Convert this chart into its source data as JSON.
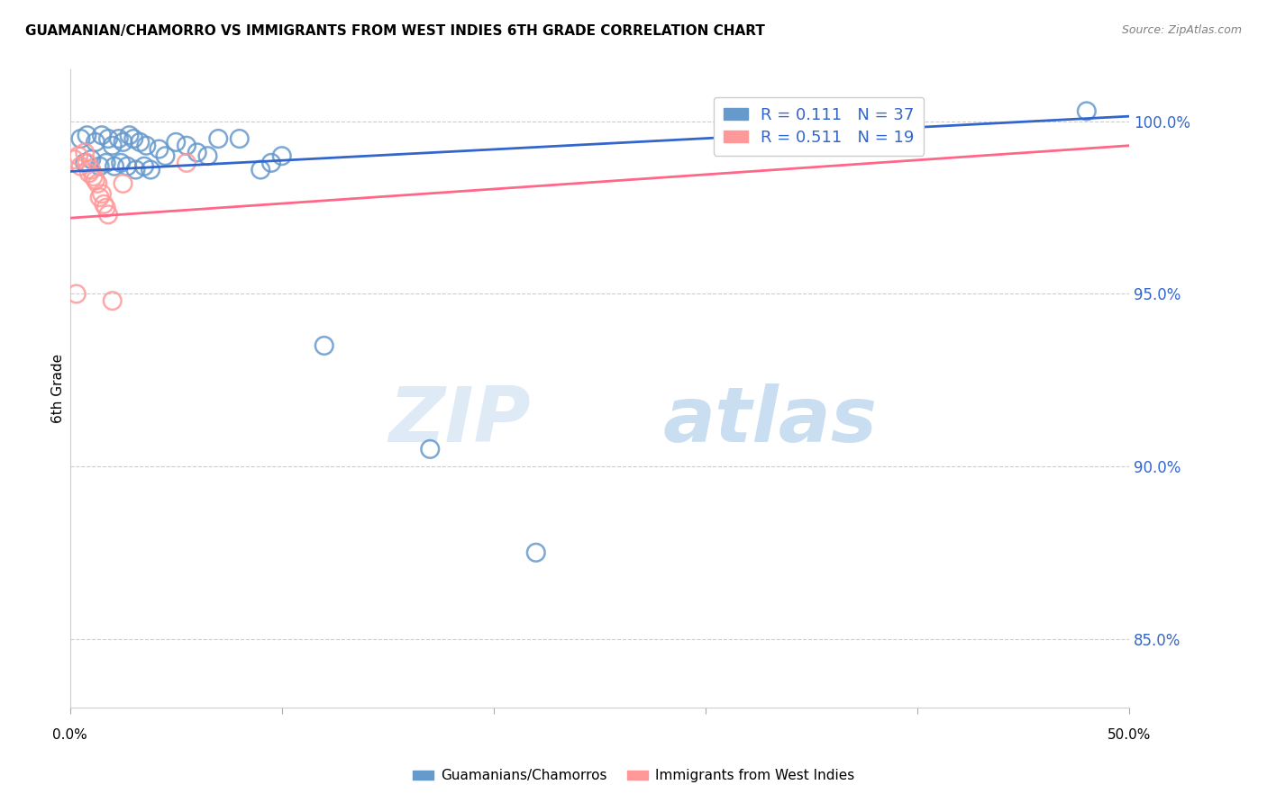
{
  "title": "GUAMANIAN/CHAMORRO VS IMMIGRANTS FROM WEST INDIES 6TH GRADE CORRELATION CHART",
  "source": "Source: ZipAtlas.com",
  "ylabel": "6th Grade",
  "y_ticks": [
    85.0,
    90.0,
    95.0,
    100.0
  ],
  "x_min": 0.0,
  "x_max": 50.0,
  "y_min": 83.0,
  "y_max": 101.5,
  "blue_R": 0.111,
  "blue_N": 37,
  "pink_R": 0.511,
  "pink_N": 19,
  "blue_color": "#6699CC",
  "pink_color": "#FF9999",
  "blue_line_color": "#3366CC",
  "pink_line_color": "#FF6688",
  "blue_scatter": [
    [
      0.5,
      99.5
    ],
    [
      0.8,
      99.6
    ],
    [
      1.2,
      99.4
    ],
    [
      1.5,
      99.6
    ],
    [
      1.8,
      99.5
    ],
    [
      2.0,
      99.3
    ],
    [
      2.3,
      99.5
    ],
    [
      2.5,
      99.4
    ],
    [
      2.8,
      99.6
    ],
    [
      3.0,
      99.5
    ],
    [
      3.3,
      99.4
    ],
    [
      3.6,
      99.3
    ],
    [
      0.7,
      98.8
    ],
    [
      1.0,
      98.9
    ],
    [
      1.4,
      98.7
    ],
    [
      1.7,
      98.8
    ],
    [
      2.1,
      98.7
    ],
    [
      2.4,
      98.8
    ],
    [
      2.7,
      98.7
    ],
    [
      3.1,
      98.6
    ],
    [
      3.5,
      98.7
    ],
    [
      3.8,
      98.6
    ],
    [
      4.2,
      99.2
    ],
    [
      4.5,
      99.0
    ],
    [
      5.0,
      99.4
    ],
    [
      5.5,
      99.3
    ],
    [
      6.0,
      99.1
    ],
    [
      6.5,
      99.0
    ],
    [
      7.0,
      99.5
    ],
    [
      8.0,
      99.5
    ],
    [
      9.0,
      98.6
    ],
    [
      9.5,
      98.8
    ],
    [
      10.0,
      99.0
    ],
    [
      12.0,
      93.5
    ],
    [
      17.0,
      90.5
    ],
    [
      22.0,
      87.5
    ],
    [
      48.0,
      100.3
    ]
  ],
  "pink_scatter": [
    [
      0.2,
      98.9
    ],
    [
      0.4,
      99.0
    ],
    [
      0.5,
      98.7
    ],
    [
      0.7,
      99.1
    ],
    [
      0.8,
      98.8
    ],
    [
      0.9,
      98.5
    ],
    [
      1.0,
      98.6
    ],
    [
      1.1,
      98.4
    ],
    [
      1.2,
      98.3
    ],
    [
      1.3,
      98.2
    ],
    [
      1.4,
      97.8
    ],
    [
      1.5,
      97.9
    ],
    [
      1.6,
      97.6
    ],
    [
      1.7,
      97.5
    ],
    [
      1.8,
      97.3
    ],
    [
      2.5,
      98.2
    ],
    [
      5.5,
      98.8
    ],
    [
      2.0,
      94.8
    ],
    [
      0.3,
      95.0
    ]
  ],
  "blue_trendline": [
    [
      0.0,
      98.55
    ],
    [
      50.0,
      100.15
    ]
  ],
  "pink_trendline": [
    [
      0.0,
      97.2
    ],
    [
      50.0,
      99.3
    ]
  ],
  "watermark_zip": "ZIP",
  "watermark_atlas": "atlas",
  "background_color": "#ffffff",
  "grid_color": "#cccccc",
  "title_fontsize": 11,
  "legend_fontsize": 13,
  "axis_label_fontsize": 11
}
